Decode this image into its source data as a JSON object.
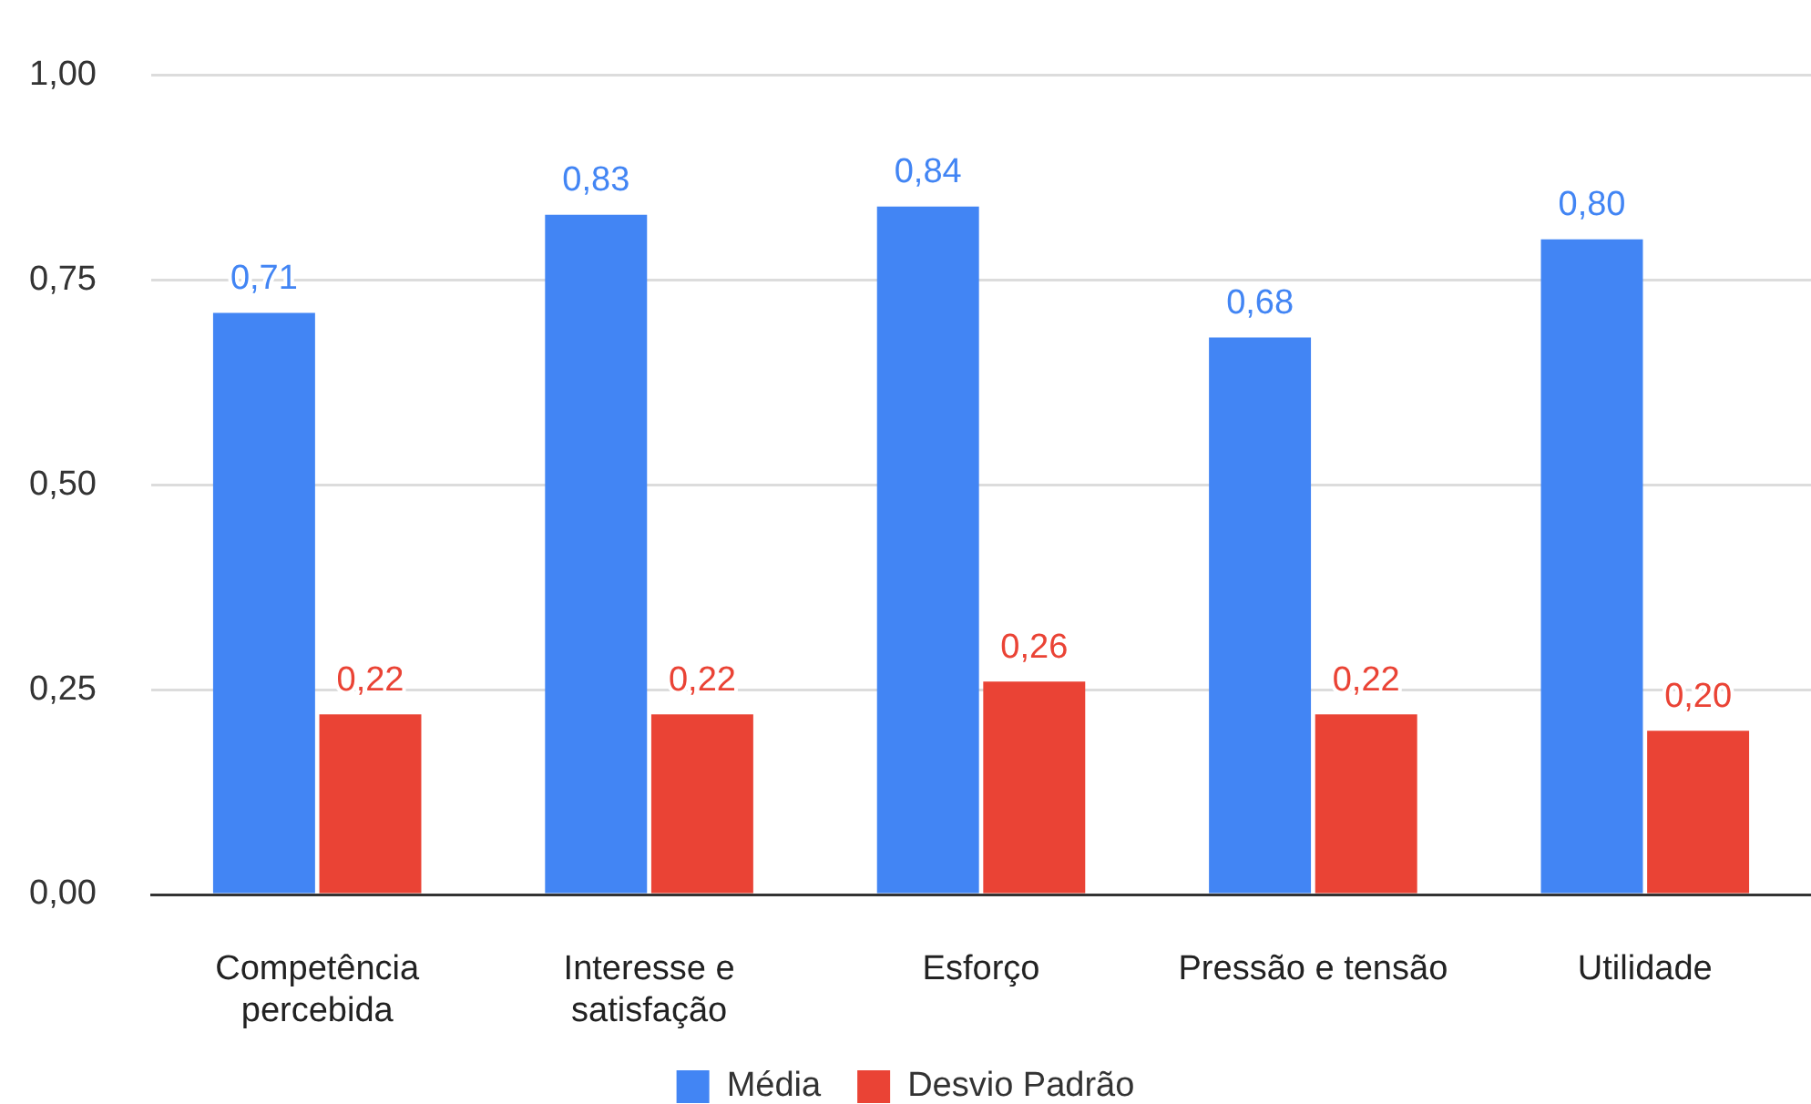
{
  "chart_data": {
    "type": "bar",
    "categories": [
      "Competência percebida",
      "Interesse e satisfação",
      "Esforço",
      "Pressão e tensão",
      "Utilidade"
    ],
    "series": [
      {
        "name": "Média",
        "color": "#4285f4",
        "values": [
          0.71,
          0.83,
          0.84,
          0.68,
          0.8
        ],
        "value_labels": [
          "0,71",
          "0,83",
          "0,84",
          "0,68",
          "0,80"
        ]
      },
      {
        "name": "Desvio Padrão",
        "color": "#ea4335",
        "values": [
          0.22,
          0.22,
          0.26,
          0.22,
          0.2
        ],
        "value_labels": [
          "0,22",
          "0,22",
          "0,26",
          "0,22",
          "0,20"
        ]
      }
    ],
    "ylim": [
      0,
      1
    ],
    "yticks": [
      {
        "value": 0,
        "label": "0,00"
      },
      {
        "value": 0.25,
        "label": "0,25"
      },
      {
        "value": 0.5,
        "label": "0,50"
      },
      {
        "value": 0.75,
        "label": "0,75"
      },
      {
        "value": 1,
        "label": "1,00"
      }
    ],
    "grid": "y",
    "legend": "bottom"
  }
}
